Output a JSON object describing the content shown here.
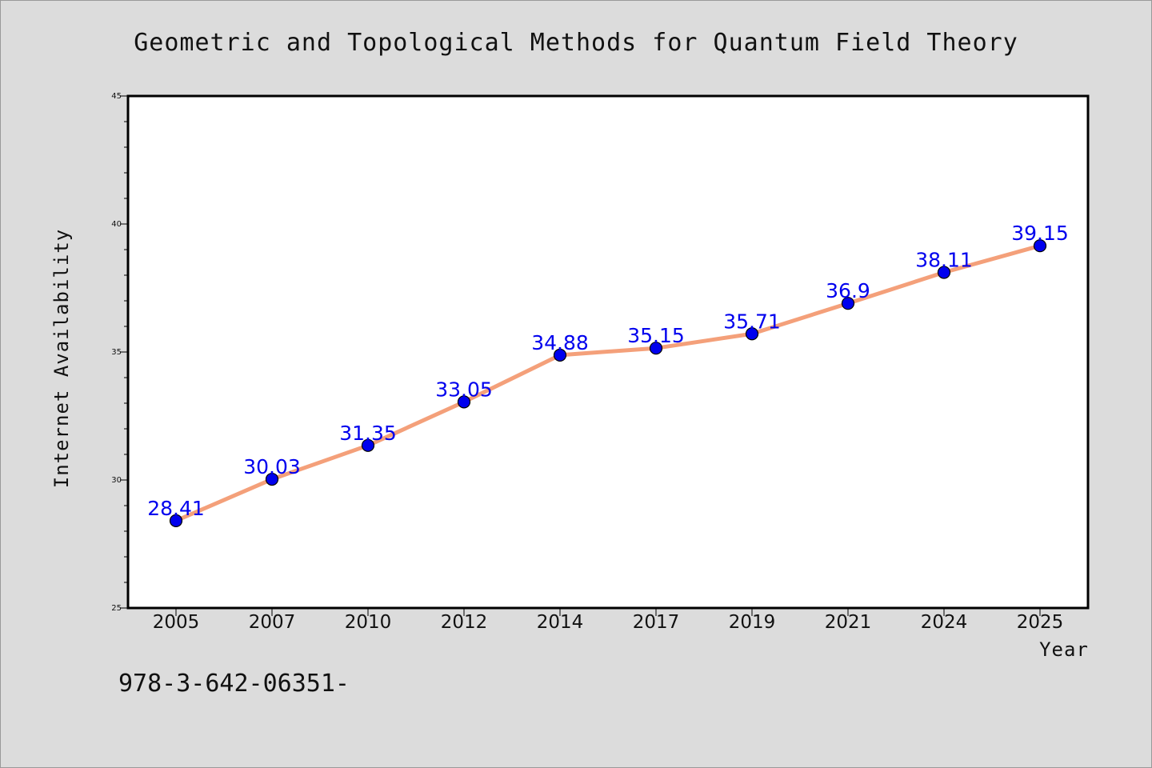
{
  "chart_data": {
    "type": "line",
    "title": "Geometric and Topological Methods for Quantum Field Theory",
    "xlabel": "Year",
    "ylabel": "Internet Availability",
    "categories": [
      "2005",
      "2007",
      "2010",
      "2012",
      "2014",
      "2017",
      "2019",
      "2021",
      "2024",
      "2025"
    ],
    "series": [
      {
        "values": [
          28.41,
          30.03,
          31.35,
          33.05,
          34.88,
          35.15,
          35.71,
          36.9,
          38.11,
          39.15
        ],
        "labels": [
          "28.41",
          "30.03",
          "31.35",
          "33.05",
          "34.88",
          "35.15",
          "35.71",
          "36.9",
          "38.11",
          "39.15"
        ],
        "line_color": "#f4a07a",
        "marker_color": "#0000ee"
      }
    ],
    "ylim": [
      25,
      45
    ],
    "yticks": [
      "25",
      "30",
      "35",
      "40",
      "45"
    ],
    "grid": false,
    "legend": "none"
  },
  "footer": {
    "isbn": "978-3-642-06351-"
  }
}
